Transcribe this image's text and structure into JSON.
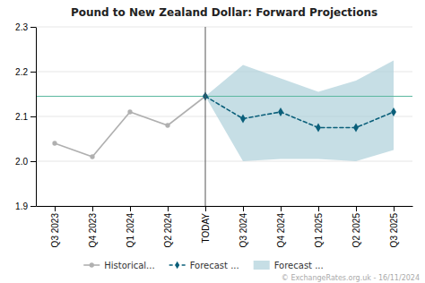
{
  "chart_data": {
    "type": "line",
    "title": "Pound to New Zealand Dollar: Forward Projections",
    "categories": [
      "Q3 2023",
      "Q4 2023",
      "Q1 2024",
      "Q2 2024",
      "TODAY",
      "Q3 2024",
      "Q4 2024",
      "Q1 2025",
      "Q2 2025",
      "Q3 2025"
    ],
    "series": [
      {
        "name": "Historical...",
        "type": "line",
        "color": "#b0b0b0",
        "marker": "circle",
        "line_style": "solid",
        "values": [
          2.04,
          2.01,
          2.11,
          2.08,
          2.145,
          null,
          null,
          null,
          null,
          null
        ]
      },
      {
        "name": "Forecast ...",
        "type": "line",
        "color": "#0a5f7a",
        "marker": "diamond",
        "line_style": "dashed",
        "values": [
          null,
          null,
          null,
          null,
          2.145,
          2.095,
          2.11,
          2.075,
          2.075,
          2.11
        ]
      },
      {
        "name": "Forecast ...",
        "type": "area",
        "color": "#a8ccd7",
        "lower": [
          null,
          null,
          null,
          null,
          2.145,
          2.0,
          2.005,
          2.005,
          2.0,
          2.025
        ],
        "upper": [
          null,
          null,
          null,
          null,
          2.145,
          2.215,
          2.185,
          2.155,
          2.18,
          2.225
        ]
      }
    ],
    "reference_lines": [
      {
        "axis": "y",
        "value": 2.145,
        "color": "#5cb8a0"
      },
      {
        "axis": "x",
        "value": "TODAY",
        "color": "#555555"
      }
    ],
    "annotations": [
      {
        "text": "© ExchangeRates.org.uk - 16/11/2024"
      }
    ],
    "ylim": [
      1.9,
      2.3
    ],
    "yticks": [
      1.9,
      {
        "value": 2.0,
        "label": "2.0"
      },
      2.1,
      2.2,
      2.3
    ],
    "grid": true,
    "legend": "bottom"
  }
}
